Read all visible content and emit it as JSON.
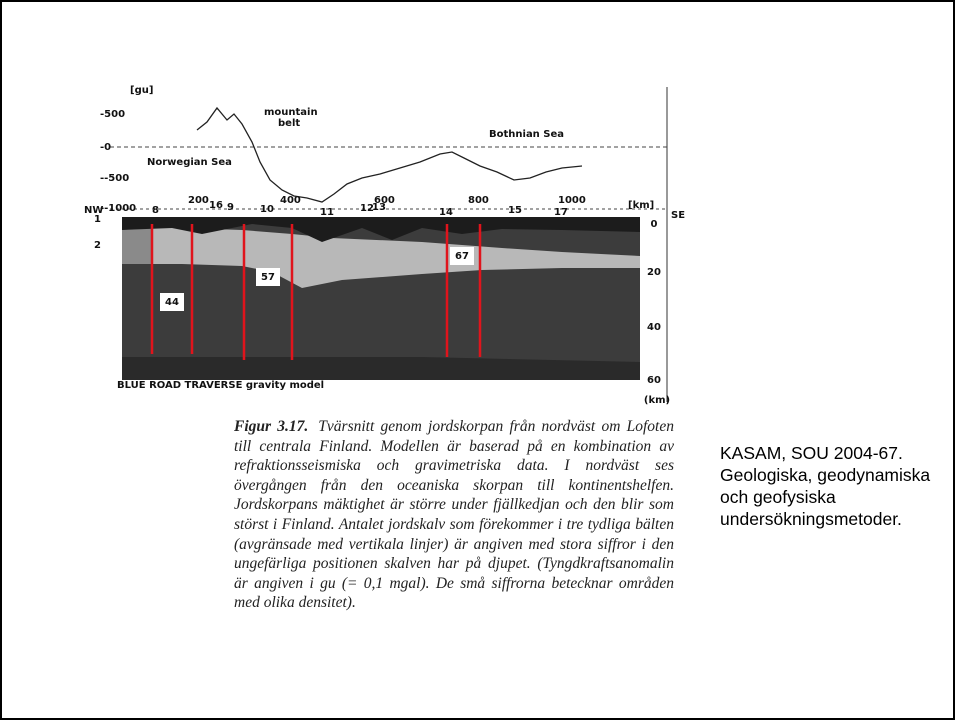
{
  "figure": {
    "gravity_unit": "[gu]",
    "gravity_ticks": [
      "-500",
      "-0",
      "--500",
      "--1000"
    ],
    "km_ticks": [
      "200",
      "400",
      "600",
      "800",
      "1000"
    ],
    "km_unit": "[km]",
    "direction_left": "NW",
    "direction_right": "SE",
    "region_labels": [
      "mountain",
      "belt",
      "Bothnian Sea",
      "Norwegian Sea"
    ],
    "zone_numbers": [
      "8",
      "16",
      "9",
      "10",
      "11",
      "12",
      "13",
      "14",
      "15",
      "17"
    ],
    "layer_numbers": [
      "1",
      "2"
    ],
    "depth_ticks": [
      "0",
      "20",
      "40",
      "60"
    ],
    "depth_unit": "(km)",
    "earthquake_counts": [
      "44",
      "57",
      "67"
    ],
    "model_title": "BLUE ROAD TRAVERSE  gravity model"
  },
  "caption": {
    "label": "Figur 3.17.",
    "text": "Tvärsnitt genom jordskorpan från nordväst om Lofoten till centrala Finland. Modellen är baserad på en kombination av refraktionsseismiska och gravimetriska data. I nordväst ses övergången från den oceaniska skorpan till kontinentshelfen. Jordskorpans mäktighet är större under fjällkedjan och den blir som störst i Finland. Antalet jordskalv som förekommer i tre tydliga bälten (avgränsade med vertikala linjer) är angiven med stora siffror i den ungefärliga positionen skalven har på djupet. (Tyngdkraftsanomalin är angiven i gu (= 0,1 mgal). De små siffrorna betecknar områden med olika densitet)."
  },
  "source": "KASAM, SOU 2004-67. Geologiska, geodynamiska och geofysiska undersökningsmetoder."
}
